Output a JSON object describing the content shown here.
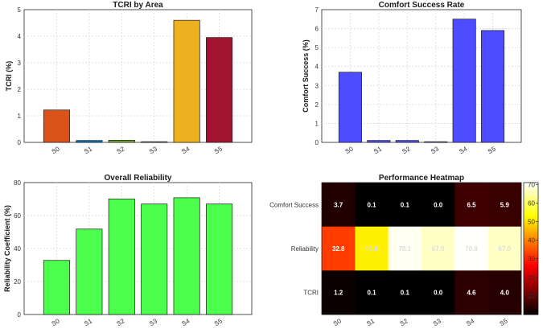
{
  "chart_data": [
    {
      "id": "tcri",
      "type": "bar",
      "title": "TCRI by Area",
      "ylabel": "TCRI (%)",
      "categories": [
        "S0",
        "S1",
        "S2",
        "S3",
        "S4",
        "S5"
      ],
      "values": [
        1.22,
        0.07,
        0.08,
        0.02,
        4.6,
        3.95
      ],
      "colors": [
        "#d95319",
        "#0072bd",
        "#77ac30",
        "#7e2f8e",
        "#edb120",
        "#a2142f"
      ],
      "ylim": [
        0,
        5
      ],
      "yticks": [
        "0",
        "1",
        "2",
        "3",
        "4",
        "5"
      ],
      "grid": true
    },
    {
      "id": "comfort",
      "type": "bar",
      "title": "Comfort Success Rate",
      "ylabel": "Comfort Success (%)",
      "categories": [
        "S0",
        "S1",
        "S2",
        "S3",
        "S4",
        "S5"
      ],
      "values": [
        3.7,
        0.1,
        0.1,
        0.0,
        6.5,
        5.9
      ],
      "colors": [
        "#4d4dff",
        "#4d4dff",
        "#4d4dff",
        "#4d4dff",
        "#4d4dff",
        "#4d4dff"
      ],
      "ylim": [
        0,
        7
      ],
      "yticks": [
        "0",
        "1",
        "2",
        "3",
        "4",
        "5",
        "6",
        "7"
      ],
      "grid": true
    },
    {
      "id": "reliability",
      "type": "bar",
      "title": "Overall Reliability",
      "ylabel": "Reliability Coefficient (%)",
      "categories": [
        "S0",
        "S1",
        "S2",
        "S3",
        "S4",
        "S5"
      ],
      "values": [
        32.8,
        51.8,
        70.1,
        67.0,
        70.8,
        67.0
      ],
      "colors": [
        "#4dff4d",
        "#4dff4d",
        "#4dff4d",
        "#4dff4d",
        "#4dff4d",
        "#4dff4d"
      ],
      "ylim": [
        0,
        80
      ],
      "yticks": [
        "0",
        "20",
        "40",
        "60",
        "80"
      ],
      "grid": true
    },
    {
      "id": "heatmap",
      "type": "heatmap",
      "title": "Performance Heatmap",
      "columns": [
        "S0",
        "S1",
        "S2",
        "S3",
        "S4",
        "S5"
      ],
      "rows": [
        "Comfort Success",
        "Reliability",
        "TCRI"
      ],
      "values": [
        [
          3.7,
          0.1,
          0.1,
          0.0,
          6.5,
          5.9
        ],
        [
          32.8,
          51.8,
          70.1,
          67.0,
          70.8,
          67.0
        ],
        [
          1.2,
          0.1,
          0.1,
          0.0,
          4.6,
          4.0
        ]
      ],
      "labels": [
        [
          "3.7",
          "0.1",
          "0.1",
          "0.0",
          "6.5",
          "5.9"
        ],
        [
          "32.8",
          "51.8",
          "70.1",
          "67.0",
          "70.8",
          "67.0"
        ],
        [
          "1.2",
          "0.1",
          "0.1",
          "0.0",
          "4.6",
          "4.0"
        ]
      ],
      "colormap": "hot",
      "clim": [
        0,
        71
      ],
      "colorbar_ticks": [
        "10",
        "20",
        "30",
        "40",
        "50",
        "60",
        "70"
      ]
    }
  ]
}
